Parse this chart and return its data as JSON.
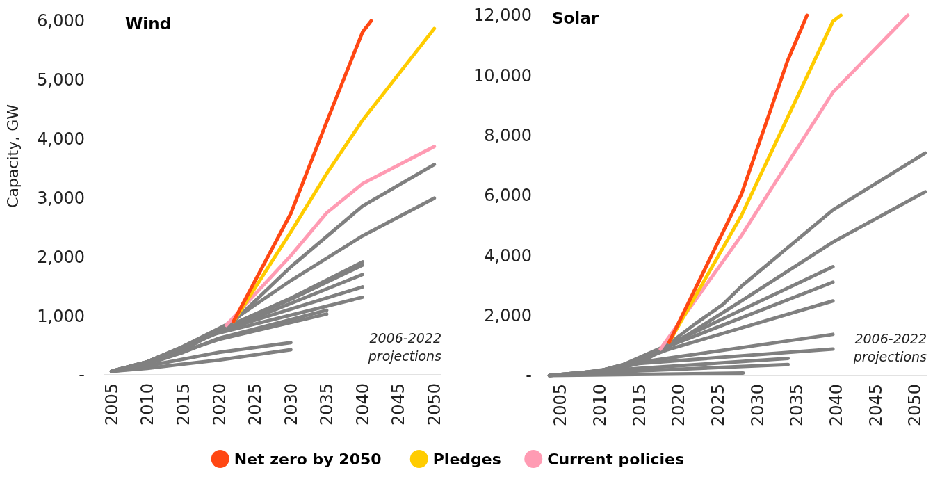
{
  "chart_data": [
    {
      "type": "line",
      "title": "Wind",
      "ylabel": "Capacity, GW",
      "xlim": [
        2004,
        2051
      ],
      "xticks": [
        2005,
        2010,
        2015,
        2020,
        2025,
        2030,
        2035,
        2040,
        2045,
        2050
      ],
      "ylim": [
        0,
        6000
      ],
      "yticks": [
        {
          "value": 0,
          "label": "-"
        },
        {
          "value": 1000,
          "label": "1,000"
        },
        {
          "value": 2000,
          "label": "2,000"
        },
        {
          "value": 3000,
          "label": "3,000"
        },
        {
          "value": 4000,
          "label": "4,000"
        },
        {
          "value": 5000,
          "label": "5,000"
        },
        {
          "value": 6000,
          "label": "6,000"
        }
      ],
      "grid": false,
      "legend": "bottom",
      "line_style": "solid",
      "marker": "none",
      "annotations": [
        "2006-2022\nprojections"
      ],
      "series": [
        {
          "color": "#808080",
          "x": [
            2005,
            2010,
            2020,
            2030
          ],
          "values": [
            60,
            110,
            250,
            425
          ]
        },
        {
          "color": "#808080",
          "x": [
            2005,
            2010,
            2020,
            2030
          ],
          "values": [
            60,
            150,
            380,
            545
          ]
        },
        {
          "color": "#808080",
          "x": [
            2005,
            2008,
            2015,
            2020,
            2035
          ],
          "values": [
            60,
            100,
            380,
            620,
            1095
          ]
        },
        {
          "color": "#808080",
          "x": [
            2005,
            2010,
            2020,
            2035
          ],
          "values": [
            60,
            200,
            600,
            1030
          ]
        },
        {
          "color": "#808080",
          "x": [
            2005,
            2010,
            2015,
            2019,
            2040
          ],
          "values": [
            60,
            200,
            420,
            680,
            1315
          ]
        },
        {
          "color": "#808080",
          "x": [
            2005,
            2010,
            2015,
            2019,
            2040
          ],
          "values": [
            60,
            210,
            440,
            700,
            1490
          ]
        },
        {
          "color": "#808080",
          "x": [
            2005,
            2010,
            2015,
            2020,
            2040
          ],
          "values": [
            60,
            220,
            460,
            720,
            1700
          ]
        },
        {
          "color": "#808080",
          "x": [
            2005,
            2010,
            2015,
            2020,
            2030,
            2040
          ],
          "values": [
            60,
            220,
            470,
            740,
            1280,
            1860
          ]
        },
        {
          "color": "#808080",
          "x": [
            2005,
            2010,
            2015,
            2019,
            2030,
            2040
          ],
          "values": [
            60,
            220,
            470,
            700,
            1300,
            1913
          ]
        },
        {
          "color": "#808080",
          "x": [
            2005,
            2010,
            2015,
            2021,
            2030,
            2040,
            2050
          ],
          "values": [
            60,
            220,
            480,
            850,
            1597,
            2355,
            2995
          ]
        },
        {
          "color": "#808080",
          "x": [
            2005,
            2010,
            2015,
            2022,
            2030,
            2040,
            2050
          ],
          "values": [
            60,
            220,
            480,
            900,
            1830,
            2860,
            3565
          ]
        },
        {
          "name": "Current policies",
          "color": "#ff9bb3",
          "x": [
            2021,
            2030,
            2035,
            2040,
            2050
          ],
          "values": [
            840,
            2020,
            2745,
            3240,
            3870
          ]
        },
        {
          "name": "Pledges",
          "color": "#ffcc00",
          "x": [
            2022,
            2030,
            2035,
            2040,
            2050
          ],
          "values": [
            900,
            2420,
            3410,
            4315,
            5870
          ]
        },
        {
          "name": "Net zero by 2050",
          "color": "#ff4713",
          "x": [
            2022,
            2030,
            2035,
            2040,
            2041.2
          ],
          "values": [
            902,
            2735,
            4290,
            5810,
            6000
          ]
        }
      ]
    },
    {
      "type": "line",
      "title": "Solar",
      "xlim": [
        2003.5,
        2051.5
      ],
      "xticks": [
        2005,
        2010,
        2015,
        2020,
        2025,
        2030,
        2035,
        2040,
        2045,
        2050
      ],
      "ylim": [
        0,
        12000
      ],
      "yticks": [
        {
          "value": 0,
          "label": "-"
        },
        {
          "value": 2000,
          "label": "2,000"
        },
        {
          "value": 4000,
          "label": "4,000"
        },
        {
          "value": 6000,
          "label": "6,000"
        },
        {
          "value": 8000,
          "label": "8,000"
        },
        {
          "value": 10000,
          "label": "10,000"
        },
        {
          "value": 12000,
          "label": "12,000"
        }
      ],
      "grid": false,
      "line_style": "solid",
      "marker": "none",
      "annotations": [
        "2006-2022\nprojections"
      ],
      "series": [
        {
          "color": "#808080",
          "x": [
            2003.6,
            2028.2
          ],
          "values": [
            0,
            80
          ]
        },
        {
          "color": "#808080",
          "x": [
            2007,
            2012,
            2033.9
          ],
          "values": [
            30,
            120,
            365
          ]
        },
        {
          "color": "#808080",
          "x": [
            2009,
            2013,
            2033.9
          ],
          "values": [
            50,
            200,
            570
          ]
        },
        {
          "color": "#808080",
          "x": [
            2008,
            2015,
            2039.6
          ],
          "values": [
            50,
            400,
            880
          ]
        },
        {
          "color": "#808080",
          "x": [
            2008,
            2013,
            2015.1,
            2039.6
          ],
          "values": [
            50,
            250,
            440,
            1370
          ]
        },
        {
          "color": "#808080",
          "x": [
            2003.6,
            2010,
            2015,
            2018.5,
            2039.6
          ],
          "values": [
            0,
            150,
            500,
            850,
            2485
          ]
        },
        {
          "color": "#808080",
          "x": [
            2003.6,
            2010,
            2015,
            2018.5,
            2039.6
          ],
          "values": [
            0,
            150,
            500,
            950,
            3110
          ]
        },
        {
          "color": "#808080",
          "x": [
            2006,
            2012,
            2018.5,
            2039.6
          ],
          "values": [
            30,
            250,
            1000,
            3625
          ]
        },
        {
          "color": "#808080",
          "x": [
            2003.6,
            2010,
            2016,
            2019,
            2028,
            2039.6,
            2051.3
          ],
          "values": [
            0,
            150,
            550,
            1000,
            2485,
            4445,
            6120
          ]
        },
        {
          "color": "#808080",
          "x": [
            2003.6,
            2010,
            2015,
            2018,
            2022,
            2025.6,
            2028,
            2039.6,
            2051.3
          ],
          "values": [
            0,
            150,
            500,
            900,
            1700,
            2360,
            2976,
            5515,
            7410
          ]
        },
        {
          "color": "#ff9bb3",
          "x": [
            2017.7,
            2028,
            2039.6,
            2049.1
          ],
          "values": [
            880,
            4670,
            9435,
            12000
          ]
        },
        {
          "color": "#ffcc00",
          "x": [
            2018.8,
            2028,
            2039.6,
            2040.6
          ],
          "values": [
            1105,
            5340,
            11800,
            12000
          ]
        },
        {
          "color": "#ff4713",
          "x": [
            2018.8,
            2028,
            2033.8,
            2036.3
          ],
          "values": [
            1105,
            6050,
            10460,
            12000
          ]
        }
      ]
    }
  ]
}
